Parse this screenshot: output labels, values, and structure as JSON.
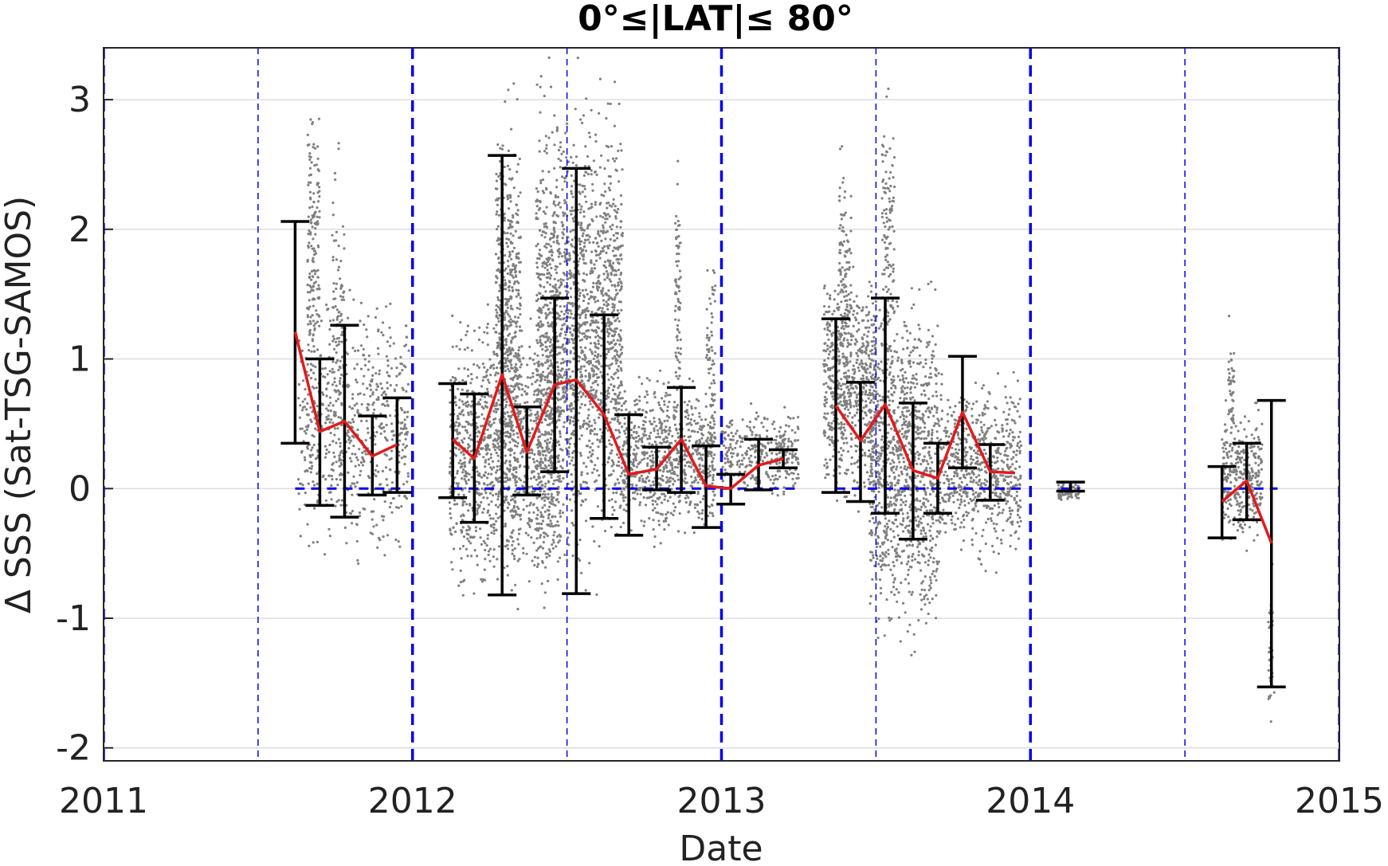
{
  "chart_data": {
    "type": "scatter",
    "title": "0°≤|LAT|≤ 80°",
    "xlabel": "Date",
    "ylabel": "Δ SSS (Sat-TSG-SAMOS)",
    "xlim": [
      2011,
      2015
    ],
    "ylim": [
      -2.1,
      3.4
    ],
    "xticks": [
      "2011",
      "2012",
      "2013",
      "2014",
      "2015"
    ],
    "yticks": [
      "-2",
      "-1",
      "0",
      "1",
      "2",
      "3"
    ],
    "grid": true,
    "colors": {
      "scatter": "#808080",
      "mean_line": "#e31a1c",
      "errorbar": "#000000",
      "reference": "#0000ee",
      "grid": "#dddddd",
      "axes": "#262626"
    },
    "vertical_lines": {
      "year_boundaries": [
        2011,
        2012,
        2013,
        2014,
        2015
      ],
      "mid_year": [
        2011.5,
        2012.5,
        2013.5,
        2014.5
      ]
    },
    "zero_reference_segments": [
      [
        2011.62,
        2011.98
      ],
      [
        2012.13,
        2012.98
      ],
      [
        2013.0,
        2013.25
      ],
      [
        2013.37,
        2013.97
      ],
      [
        2014.1,
        2014.16
      ],
      [
        2014.62,
        2014.8
      ]
    ],
    "mean_line_segments": [
      [
        [
          2011.62,
          1.21
        ],
        [
          2011.7,
          0.44
        ],
        [
          2011.78,
          0.52
        ],
        [
          2011.87,
          0.25
        ],
        [
          2011.95,
          0.34
        ]
      ],
      [
        [
          2012.13,
          0.38
        ],
        [
          2012.2,
          0.23
        ],
        [
          2012.29,
          0.88
        ],
        [
          2012.37,
          0.28
        ],
        [
          2012.46,
          0.8
        ],
        [
          2012.53,
          0.84
        ],
        [
          2012.62,
          0.57
        ],
        [
          2012.7,
          0.11
        ],
        [
          2012.79,
          0.15
        ],
        [
          2012.87,
          0.38
        ],
        [
          2012.95,
          0.02
        ],
        [
          2013.03,
          0.0
        ],
        [
          2013.12,
          0.18
        ],
        [
          2013.2,
          0.23
        ]
      ],
      [
        [
          2013.37,
          0.64
        ],
        [
          2013.45,
          0.37
        ],
        [
          2013.53,
          0.65
        ],
        [
          2013.62,
          0.14
        ],
        [
          2013.7,
          0.08
        ],
        [
          2013.78,
          0.59
        ],
        [
          2013.87,
          0.13
        ],
        [
          2013.95,
          0.12
        ]
      ],
      [
        [
          2014.62,
          -0.1
        ],
        [
          2014.7,
          0.06
        ],
        [
          2014.78,
          -0.42
        ]
      ]
    ],
    "error_bars": [
      {
        "x": 2011.62,
        "low": 0.35,
        "high": 2.06
      },
      {
        "x": 2011.7,
        "low": -0.13,
        "high": 1.0
      },
      {
        "x": 2011.78,
        "low": -0.22,
        "high": 1.26
      },
      {
        "x": 2011.87,
        "low": -0.05,
        "high": 0.56
      },
      {
        "x": 2011.95,
        "low": -0.03,
        "high": 0.7
      },
      {
        "x": 2012.13,
        "low": -0.07,
        "high": 0.81
      },
      {
        "x": 2012.2,
        "low": -0.26,
        "high": 0.73
      },
      {
        "x": 2012.29,
        "low": -0.82,
        "high": 2.57
      },
      {
        "x": 2012.37,
        "low": -0.05,
        "high": 0.63
      },
      {
        "x": 2012.46,
        "low": 0.13,
        "high": 1.47
      },
      {
        "x": 2012.53,
        "low": -0.81,
        "high": 2.47
      },
      {
        "x": 2012.62,
        "low": -0.23,
        "high": 1.34
      },
      {
        "x": 2012.7,
        "low": -0.36,
        "high": 0.57
      },
      {
        "x": 2012.79,
        "low": -0.01,
        "high": 0.32
      },
      {
        "x": 2012.87,
        "low": -0.03,
        "high": 0.78
      },
      {
        "x": 2012.95,
        "low": -0.3,
        "high": 0.33
      },
      {
        "x": 2013.03,
        "low": -0.12,
        "high": 0.11
      },
      {
        "x": 2013.12,
        "low": -0.01,
        "high": 0.38
      },
      {
        "x": 2013.2,
        "low": 0.16,
        "high": 0.3
      },
      {
        "x": 2013.37,
        "low": -0.03,
        "high": 1.31
      },
      {
        "x": 2013.45,
        "low": -0.1,
        "high": 0.82
      },
      {
        "x": 2013.53,
        "low": -0.19,
        "high": 1.47
      },
      {
        "x": 2013.62,
        "low": -0.39,
        "high": 0.66
      },
      {
        "x": 2013.7,
        "low": -0.19,
        "high": 0.35
      },
      {
        "x": 2013.78,
        "low": 0.16,
        "high": 1.02
      },
      {
        "x": 2013.87,
        "low": -0.09,
        "high": 0.34
      },
      {
        "x": 2014.13,
        "low": -0.02,
        "high": 0.05
      },
      {
        "x": 2014.62,
        "low": -0.38,
        "high": 0.17
      },
      {
        "x": 2014.7,
        "low": -0.24,
        "high": 0.35
      },
      {
        "x": 2014.78,
        "low": -1.53,
        "high": 0.68
      }
    ],
    "scatter_clusters": [
      {
        "x0": 2011.63,
        "x1": 2011.99,
        "low": -0.75,
        "high": 1.7,
        "n": 650
      },
      {
        "x0": 2011.66,
        "x1": 2011.7,
        "low": 0.3,
        "high": 3.35,
        "n": 160
      },
      {
        "x0": 2011.74,
        "x1": 2011.78,
        "low": -0.7,
        "high": 2.9,
        "n": 120
      },
      {
        "x0": 2012.12,
        "x1": 2012.48,
        "low": -1.1,
        "high": 1.6,
        "n": 1300
      },
      {
        "x0": 2012.27,
        "x1": 2012.35,
        "low": -0.8,
        "high": 3.4,
        "n": 500
      },
      {
        "x0": 2012.4,
        "x1": 2012.68,
        "low": -0.95,
        "high": 3.4,
        "n": 1900
      },
      {
        "x0": 2012.68,
        "x1": 2012.98,
        "low": -0.5,
        "high": 1.0,
        "n": 800
      },
      {
        "x0": 2012.85,
        "x1": 2012.87,
        "low": 0.0,
        "high": 2.9,
        "n": 80
      },
      {
        "x0": 2012.95,
        "x1": 2012.98,
        "low": 0.0,
        "high": 2.1,
        "n": 60
      },
      {
        "x0": 2013.0,
        "x1": 2013.25,
        "low": -0.15,
        "high": 0.7,
        "n": 350
      },
      {
        "x0": 2013.33,
        "x1": 2013.5,
        "low": -0.3,
        "high": 1.9,
        "n": 650
      },
      {
        "x0": 2013.38,
        "x1": 2013.42,
        "low": 0.4,
        "high": 2.9,
        "n": 120
      },
      {
        "x0": 2013.48,
        "x1": 2013.7,
        "low": -1.5,
        "high": 1.9,
        "n": 1100
      },
      {
        "x0": 2013.52,
        "x1": 2013.56,
        "low": 0.5,
        "high": 3.3,
        "n": 120
      },
      {
        "x0": 2013.7,
        "x1": 2013.97,
        "low": -0.7,
        "high": 1.0,
        "n": 700
      },
      {
        "x0": 2014.09,
        "x1": 2014.16,
        "low": -0.12,
        "high": 0.08,
        "n": 80
      },
      {
        "x0": 2014.62,
        "x1": 2014.75,
        "low": -0.6,
        "high": 0.8,
        "n": 320
      },
      {
        "x0": 2014.64,
        "x1": 2014.66,
        "low": 0.3,
        "high": 1.35,
        "n": 40
      },
      {
        "x0": 2014.77,
        "x1": 2014.79,
        "low": -2.05,
        "high": -0.4,
        "n": 40
      }
    ]
  }
}
